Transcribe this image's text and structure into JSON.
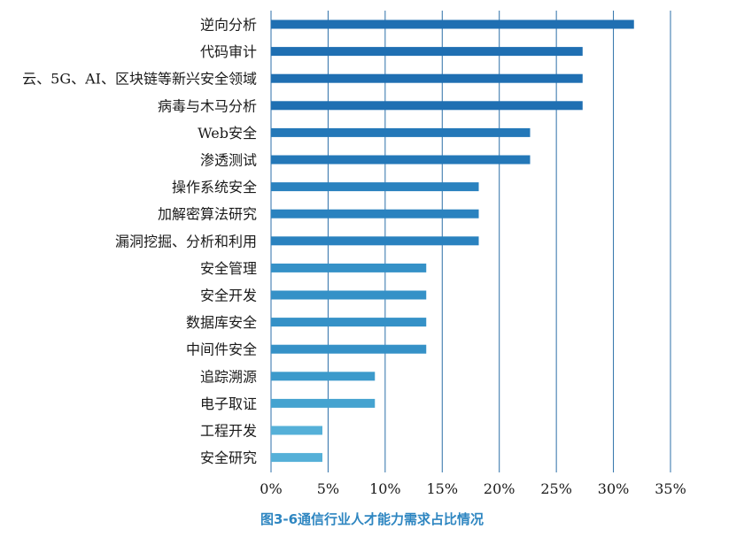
{
  "chart_data": {
    "type": "bar",
    "orientation": "horizontal",
    "title": "图3-6通信行业人才能力需求占比情况",
    "categories": [
      "逆向分析",
      "代码审计",
      "云、5G、AI、区块链等新兴安全领域",
      "病毒与木马分析",
      "Web安全",
      "渗透测试",
      "操作系统安全",
      "加解密算法研究",
      "漏洞挖掘、分析和利用",
      "安全管理",
      "安全开发",
      "数据库安全",
      "中间件安全",
      "追踪溯源",
      "电子取证",
      "工程开发",
      "安全研究"
    ],
    "values": [
      31.8,
      27.3,
      27.3,
      27.3,
      22.7,
      22.7,
      18.2,
      18.2,
      18.2,
      13.6,
      13.6,
      13.6,
      13.6,
      9.1,
      9.1,
      4.5,
      4.5
    ],
    "xlim": [
      0,
      35
    ],
    "x_ticks": [
      0,
      5,
      10,
      15,
      20,
      25,
      30,
      35
    ],
    "x_tick_labels": [
      "0%",
      "5%",
      "10%",
      "15%",
      "20%",
      "25%",
      "30%",
      "35%"
    ],
    "grid": "vertical",
    "bar_colors": [
      "#1f6fb2",
      "#1f6fb2",
      "#1f6fb2",
      "#1f6fb2",
      "#2478b8",
      "#2478b8",
      "#2a82bf",
      "#2a82bf",
      "#2a82bf",
      "#3591c7",
      "#3591c7",
      "#3591c7",
      "#3591c7",
      "#3c9acb",
      "#45a3d0",
      "#55b0d8",
      "#55b0d8"
    ],
    "grid_color": "#2c6fa8"
  }
}
